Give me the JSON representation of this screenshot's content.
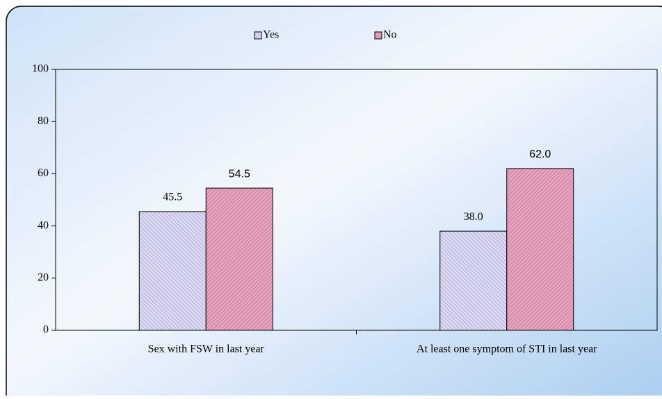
{
  "chart_data": {
    "type": "bar",
    "categories": [
      "Sex with FSW in last year",
      "At least one symptom of STI in last year"
    ],
    "series": [
      {
        "name": "Yes",
        "color": "#d9d9f3",
        "values": [
          45.5,
          38
        ],
        "value_labels": [
          "45.5",
          "38.0"
        ]
      },
      {
        "name": "No",
        "color": "#e6a3bd",
        "values": [
          54.5,
          62
        ],
        "value_labels": [
          "54.5",
          "62.0"
        ]
      }
    ],
    "ylim": [
      0,
      100
    ],
    "yticks": [
      0,
      20,
      40,
      60,
      80,
      100
    ],
    "grid": false,
    "legend": "top"
  }
}
